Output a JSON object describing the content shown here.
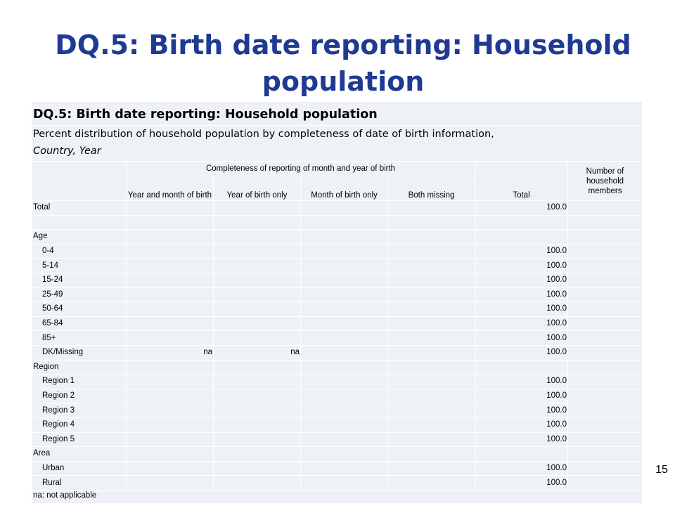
{
  "slide": {
    "title": "DQ.5: Birth date reporting: Household population",
    "page_number": "15"
  },
  "table": {
    "title": "DQ.5: Birth date reporting: Household population",
    "subtitle_line1": "Percent distribution of household population by completeness of date of birth information,",
    "subtitle_line2": "Country, Year",
    "group_header": "Completeness of reporting of month and year of birth",
    "columns": {
      "year_month": "Year and month of birth",
      "year_only": "Year of birth only",
      "month_only": "Month of birth only",
      "both_missing": "Both missing",
      "total": "Total",
      "members": "Number of household members"
    },
    "rows": [
      {
        "label": "Total",
        "indent": false,
        "year_month": "",
        "year_only": "",
        "month_only": "",
        "both_missing": "",
        "total": "100.0",
        "members": ""
      },
      {
        "label": "",
        "indent": false,
        "year_month": "",
        "year_only": "",
        "month_only": "",
        "both_missing": "",
        "total": "",
        "members": ""
      },
      {
        "label": "Age",
        "indent": false,
        "year_month": "",
        "year_only": "",
        "month_only": "",
        "both_missing": "",
        "total": "",
        "members": ""
      },
      {
        "label": "0-4",
        "indent": true,
        "year_month": "",
        "year_only": "",
        "month_only": "",
        "both_missing": "",
        "total": "100.0",
        "members": ""
      },
      {
        "label": "5-14",
        "indent": true,
        "year_month": "",
        "year_only": "",
        "month_only": "",
        "both_missing": "",
        "total": "100.0",
        "members": ""
      },
      {
        "label": "15-24",
        "indent": true,
        "year_month": "",
        "year_only": "",
        "month_only": "",
        "both_missing": "",
        "total": "100.0",
        "members": ""
      },
      {
        "label": "25-49",
        "indent": true,
        "year_month": "",
        "year_only": "",
        "month_only": "",
        "both_missing": "",
        "total": "100.0",
        "members": ""
      },
      {
        "label": "50-64",
        "indent": true,
        "year_month": "",
        "year_only": "",
        "month_only": "",
        "both_missing": "",
        "total": "100.0",
        "members": ""
      },
      {
        "label": "65-84",
        "indent": true,
        "year_month": "",
        "year_only": "",
        "month_only": "",
        "both_missing": "",
        "total": "100.0",
        "members": ""
      },
      {
        "label": "85+",
        "indent": true,
        "year_month": "",
        "year_only": "",
        "month_only": "",
        "both_missing": "",
        "total": "100.0",
        "members": ""
      },
      {
        "label": "DK/Missing",
        "indent": true,
        "year_month": "na",
        "year_only": "na",
        "month_only": "",
        "both_missing": "",
        "total": "100.0",
        "members": ""
      },
      {
        "label": "Region",
        "indent": false,
        "year_month": "",
        "year_only": "",
        "month_only": "",
        "both_missing": "",
        "total": "",
        "members": ""
      },
      {
        "label": "Region 1",
        "indent": true,
        "year_month": "",
        "year_only": "",
        "month_only": "",
        "both_missing": "",
        "total": "100.0",
        "members": ""
      },
      {
        "label": "Region 2",
        "indent": true,
        "year_month": "",
        "year_only": "",
        "month_only": "",
        "both_missing": "",
        "total": "100.0",
        "members": ""
      },
      {
        "label": "Region 3",
        "indent": true,
        "year_month": "",
        "year_only": "",
        "month_only": "",
        "both_missing": "",
        "total": "100.0",
        "members": ""
      },
      {
        "label": "Region 4",
        "indent": true,
        "year_month": "",
        "year_only": "",
        "month_only": "",
        "both_missing": "",
        "total": "100.0",
        "members": ""
      },
      {
        "label": "Region 5",
        "indent": true,
        "year_month": "",
        "year_only": "",
        "month_only": "",
        "both_missing": "",
        "total": "100.0",
        "members": ""
      },
      {
        "label": "Area",
        "indent": false,
        "year_month": "",
        "year_only": "",
        "month_only": "",
        "both_missing": "",
        "total": "",
        "members": ""
      },
      {
        "label": "Urban",
        "indent": true,
        "year_month": "",
        "year_only": "",
        "month_only": "",
        "both_missing": "",
        "total": "100.0",
        "members": ""
      },
      {
        "label": "Rural",
        "indent": true,
        "year_month": "",
        "year_only": "",
        "month_only": "",
        "both_missing": "",
        "total": "100.0",
        "members": ""
      }
    ],
    "footnote": "na: not applicable"
  }
}
